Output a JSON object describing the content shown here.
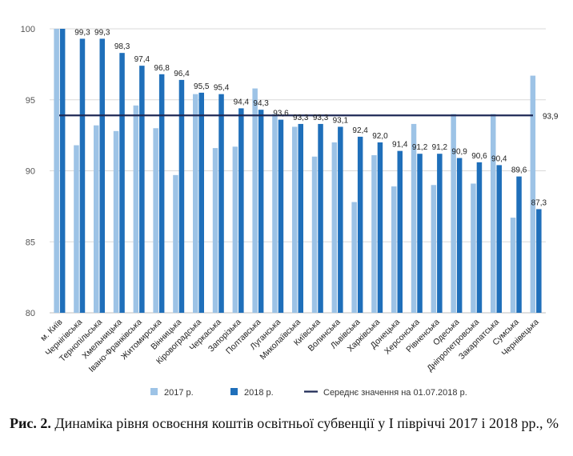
{
  "chart_data": {
    "type": "bar",
    "ylim": [
      80,
      100
    ],
    "yticks": [
      "80",
      "85",
      "90",
      "95",
      "100"
    ],
    "categories": [
      "м. Київ",
      "Чернігівська",
      "Тернопільська",
      "Хмельницька",
      "Івано-Франківська",
      "Житомирська",
      "Вінницька",
      "Кіровоградська",
      "Черкаська",
      "Запорізька",
      "Полтавська",
      "Луганська",
      "Миколаївська",
      "Київська",
      "Волинська",
      "Львівська",
      "Харківська",
      "Донецька",
      "Херсонська",
      "Рівненська",
      "Одеська",
      "Дніпропетровська",
      "Закарпатська",
      "Сумська",
      "Чернівецька"
    ],
    "series": [
      {
        "name": "2017 р.",
        "color": "#9dc3e6",
        "values": [
          100,
          91.8,
          93.2,
          92.8,
          94.6,
          93.0,
          89.7,
          95.4,
          91.6,
          91.7,
          95.8,
          94.0,
          93.1,
          91.0,
          92.0,
          87.8,
          91.1,
          88.9,
          93.3,
          89.0,
          94.0,
          89.1,
          94.0,
          86.7,
          96.7
        ]
      },
      {
        "name": "2018 р.",
        "color": "#1f6fba",
        "values": [
          100,
          99.3,
          99.3,
          98.3,
          97.4,
          96.8,
          96.4,
          95.5,
          95.4,
          94.4,
          94.3,
          93.6,
          93.3,
          93.3,
          93.1,
          92.4,
          92.0,
          91.4,
          91.2,
          91.2,
          90.9,
          90.6,
          90.4,
          89.6,
          87.3
        ],
        "labels": [
          "",
          "99,3",
          "99,3",
          "98,3",
          "97,4",
          "96,8",
          "96,4",
          "95,5",
          "95,4",
          "94,4",
          "94,3",
          "93,6",
          "93,3",
          "93,3",
          "93,1",
          "92,4",
          "92,0",
          "91,4",
          "91,2",
          "91,2",
          "90,9",
          "90,6",
          "90,4",
          "89,6",
          "87,3"
        ]
      }
    ],
    "reference_line": {
      "name": "Середнє значення на 01.07.2018 р.",
      "value": 93.9,
      "label": "93,9",
      "color": "#1f2a56"
    },
    "grid": true,
    "legend_position": "bottom"
  },
  "caption": {
    "prefix": "Рис. 2.",
    "text": " Динаміка рівня освоєння коштів освітньої субвенції у І півріччі 2017 і 2018 рр., %"
  }
}
